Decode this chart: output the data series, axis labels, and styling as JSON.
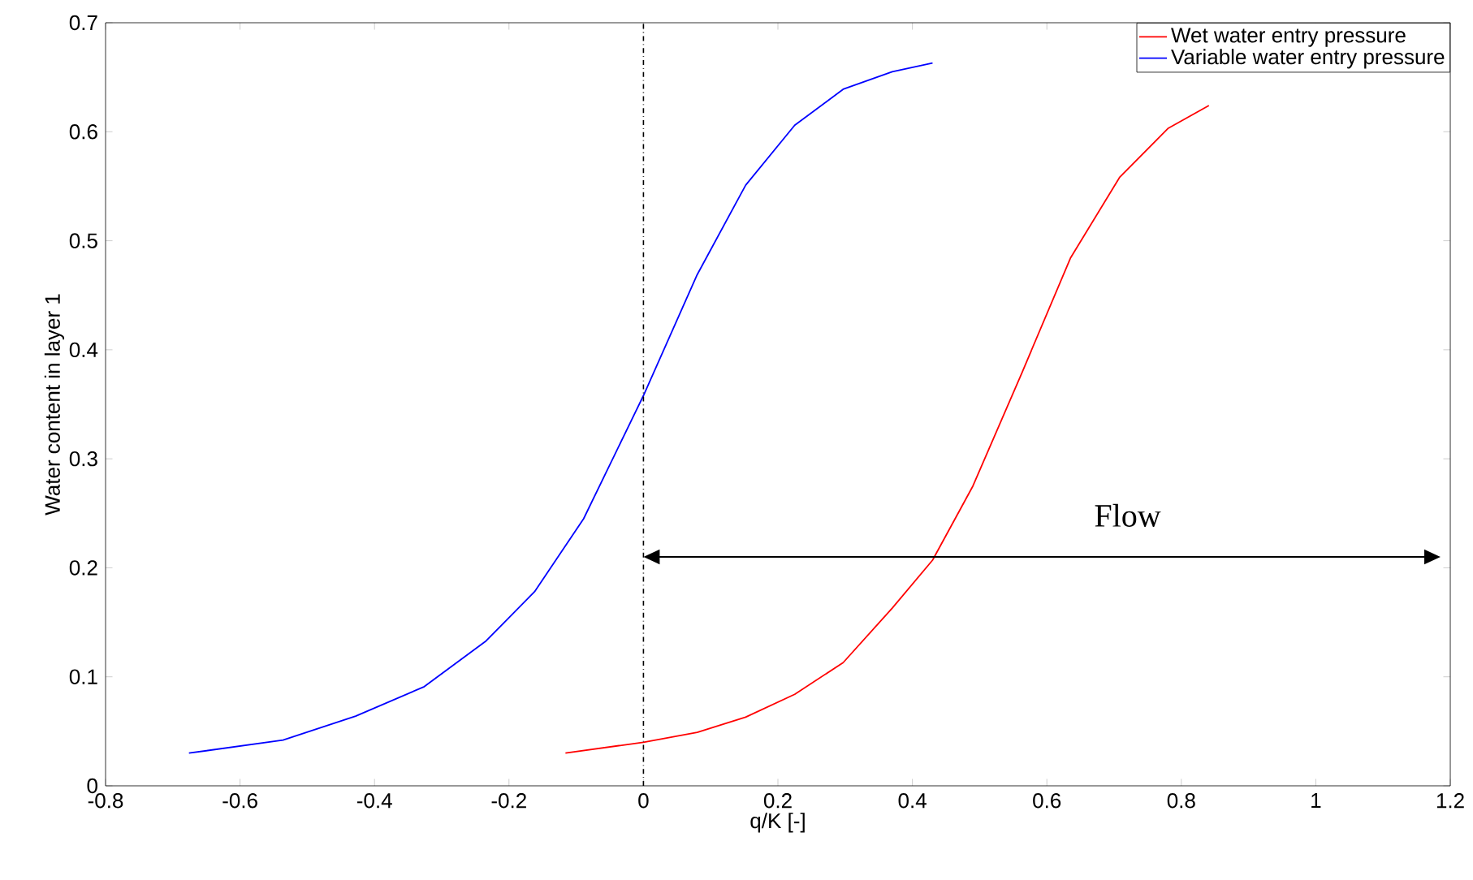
{
  "chart_data": {
    "type": "line",
    "xlabel": "q/K [-]",
    "ylabel": "Water content in layer 1",
    "xlim": [
      -0.8,
      1.2
    ],
    "ylim": [
      0,
      0.7
    ],
    "xticks": [
      -0.8,
      -0.6,
      -0.4,
      -0.2,
      0,
      0.2,
      0.4,
      0.6,
      0.8,
      1,
      1.2
    ],
    "yticks": [
      0,
      0.1,
      0.2,
      0.3,
      0.4,
      0.5,
      0.6,
      0.7
    ],
    "grid": false,
    "legend": "top right",
    "marker": "none",
    "line_style": "solid",
    "series": [
      {
        "name": "Wet water entry pressure",
        "color": "#ff0000",
        "x": [
          -0.116,
          0,
          0.08,
          0.152,
          0.225,
          0.297,
          0.37,
          0.43,
          0.49,
          0.563,
          0.635,
          0.708,
          0.78,
          0.841
        ],
        "values": [
          0.03,
          0.04,
          0.049,
          0.063,
          0.084,
          0.113,
          0.163,
          0.207,
          0.275,
          0.379,
          0.484,
          0.558,
          0.603,
          0.624
        ]
      },
      {
        "name": "Variable water entry pressure",
        "color": "#0000ff",
        "x": [
          -0.676,
          -0.536,
          -0.428,
          -0.326,
          -0.234,
          -0.162,
          -0.089,
          0,
          0.08,
          0.152,
          0.225,
          0.297,
          0.37,
          0.43
        ],
        "values": [
          0.03,
          0.042,
          0.064,
          0.091,
          0.133,
          0.178,
          0.245,
          0.358,
          0.469,
          0.551,
          0.606,
          0.639,
          0.655,
          0.663
        ]
      }
    ],
    "ref_lines": [
      {
        "axis": "x",
        "value": 0,
        "color": "#000000",
        "line_style": "dashdotted"
      }
    ],
    "annotations": [
      "Flow"
    ]
  }
}
